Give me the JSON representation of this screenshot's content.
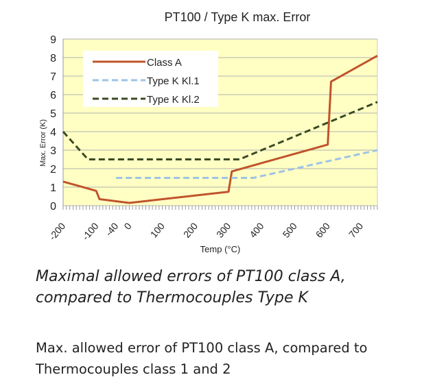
{
  "chart_data": {
    "type": "line",
    "title": "PT100 / Type K max. Error",
    "xlabel": "Temp (°C)",
    "ylabel": "Max. Error (K)",
    "xlim": [
      -200,
      750
    ],
    "ylim": [
      0,
      9
    ],
    "x_ticks": [
      -200,
      -100,
      -40,
      0,
      100,
      200,
      300,
      400,
      500,
      600,
      700
    ],
    "y_ticks": [
      0,
      1,
      2,
      3,
      4,
      5,
      6,
      7,
      8,
      9
    ],
    "grid": true,
    "legend_position": "top-left",
    "series": [
      {
        "name": "Class A",
        "color": "#c0532a",
        "style": "solid",
        "points": [
          [
            -200,
            1.3
          ],
          [
            -100,
            0.8
          ],
          [
            -90,
            0.35
          ],
          [
            0,
            0.15
          ],
          [
            300,
            0.75
          ],
          [
            310,
            1.85
          ],
          [
            600,
            3.3
          ],
          [
            610,
            6.7
          ],
          [
            750,
            8.1
          ]
        ]
      },
      {
        "name": "Type K Kl.1",
        "color": "#9dc3e6",
        "style": "dashed",
        "points": [
          [
            -40,
            1.5
          ],
          [
            375,
            1.5
          ],
          [
            750,
            3.0
          ]
        ]
      },
      {
        "name": "Type K Kl.2",
        "color": "#3b4a23",
        "style": "dashed",
        "points": [
          [
            -200,
            4.0
          ],
          [
            -125,
            2.5
          ],
          [
            333,
            2.5
          ],
          [
            750,
            5.6
          ]
        ]
      }
    ]
  },
  "caption": {
    "italic": "Maximal allowed errors of PT100 class A, compared to Thermocouples Type K",
    "normal": "Max. allowed error of PT100 class A, compared to Thermocouples class 1 and 2"
  }
}
